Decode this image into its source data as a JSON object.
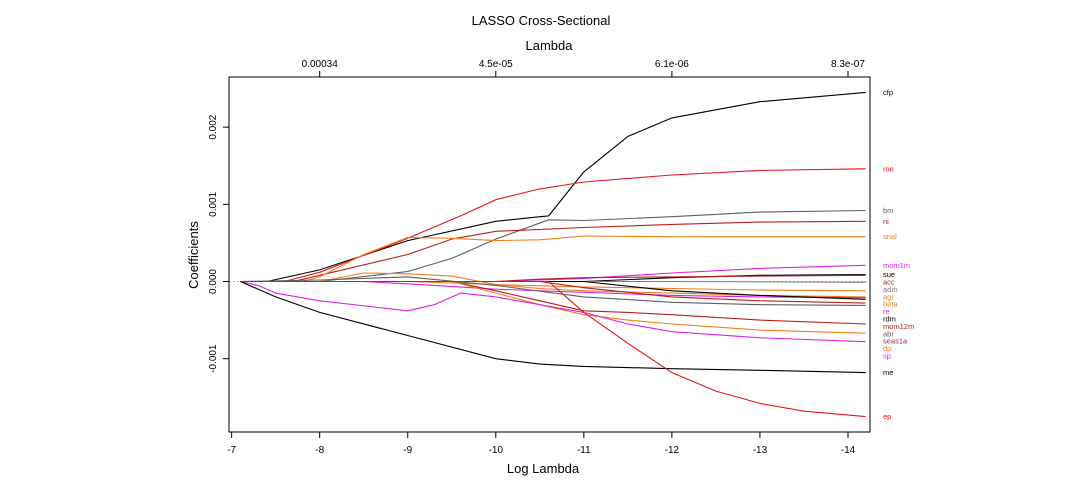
{
  "chart_data": {
    "type": "line",
    "title": "LASSO Cross-Sectional",
    "xlabel": "Log Lambda",
    "ylabel": "Coefficients",
    "top_axis_label": "Lambda",
    "xlim": [
      -6.97,
      -14.25
    ],
    "ylim": [
      -0.00195,
      0.00265
    ],
    "x_ticks": [
      -7,
      -8,
      -9,
      -10,
      -11,
      -12,
      -13,
      -14
    ],
    "x_tick_labels": [
      "-7",
      "-8",
      "-9",
      "-10",
      "-11",
      "-12",
      "-13",
      "-14"
    ],
    "y_ticks": [
      -0.001,
      0.0,
      0.001,
      0.002
    ],
    "y_tick_labels": [
      "-0.001",
      "0.000",
      "0.001",
      "0.002"
    ],
    "top_ticks": [
      -8,
      -10,
      -12,
      -14
    ],
    "top_tick_labels": [
      "0.00034",
      "4.5e-05",
      "6.1e-06",
      "8.3e-07"
    ],
    "zero_line": true,
    "legend_position": "right",
    "series": [
      {
        "name": "cfp",
        "color": "#000000",
        "points": [
          [
            -7.1,
            0
          ],
          [
            -7.4,
            0
          ],
          [
            -8,
            0.00015
          ],
          [
            -9,
            0.00053
          ],
          [
            -10,
            0.00078
          ],
          [
            -10.5,
            0.00084
          ],
          [
            -10.6,
            0.00085
          ],
          [
            -11,
            0.00142
          ],
          [
            -11.5,
            0.00188
          ],
          [
            -12,
            0.00212
          ],
          [
            -13,
            0.00233
          ],
          [
            -14.2,
            0.00245
          ]
        ]
      },
      {
        "name": "roe",
        "color": "#e8141e",
        "points": [
          [
            -7.1,
            0
          ],
          [
            -7.6,
            0
          ],
          [
            -8,
            0.00012
          ],
          [
            -9,
            0.00056
          ],
          [
            -9.6,
            0.00085
          ],
          [
            -10,
            0.00106
          ],
          [
            -10.5,
            0.0012
          ],
          [
            -11,
            0.00129
          ],
          [
            -12,
            0.00138
          ],
          [
            -13,
            0.00144
          ],
          [
            -14.2,
            0.00146
          ]
        ]
      },
      {
        "name": "bm",
        "color": "#606060",
        "points": [
          [
            -7.1,
            0
          ],
          [
            -8,
            0
          ],
          [
            -9,
            0.00013
          ],
          [
            -9.5,
            0.0003
          ],
          [
            -10,
            0.00055
          ],
          [
            -10.6,
            0.0008
          ],
          [
            -11,
            0.00079
          ],
          [
            -12,
            0.00084
          ],
          [
            -13,
            0.0009
          ],
          [
            -14.2,
            0.00092
          ]
        ]
      },
      {
        "name": "ni",
        "color": "#b22222",
        "points": [
          [
            -7.1,
            0
          ],
          [
            -7.7,
            0
          ],
          [
            -8,
            8e-05
          ],
          [
            -9,
            0.00035
          ],
          [
            -9.5,
            0.00055
          ],
          [
            -10,
            0.00065
          ],
          [
            -11,
            0.0007
          ],
          [
            -12,
            0.00074
          ],
          [
            -13,
            0.00077
          ],
          [
            -14.2,
            0.00078
          ]
        ]
      },
      {
        "name": "snal",
        "color": "#ef7f1a",
        "points": [
          [
            -7.1,
            0
          ],
          [
            -7.8,
            0
          ],
          [
            -8,
            6e-05
          ],
          [
            -8.5,
            0.00035
          ],
          [
            -9,
            0.00057
          ],
          [
            -9.5,
            0.00056
          ],
          [
            -10,
            0.00053
          ],
          [
            -10.5,
            0.00054
          ],
          [
            -11,
            0.00059
          ],
          [
            -12,
            0.00058
          ],
          [
            -13,
            0.00058
          ],
          [
            -14.2,
            0.00058
          ]
        ]
      },
      {
        "name": "mom1m",
        "color": "#e020e0",
        "points": [
          [
            -7.1,
            0
          ],
          [
            -10,
            0
          ],
          [
            -11,
            4e-05
          ],
          [
            -12,
            0.00011
          ],
          [
            -13,
            0.00017
          ],
          [
            -14.2,
            0.00021
          ]
        ]
      },
      {
        "name": "sue",
        "color": "#000000",
        "points": [
          [
            -7.1,
            0
          ],
          [
            -11,
            0
          ],
          [
            -12,
            5e-05
          ],
          [
            -13,
            8e-05
          ],
          [
            -14.2,
            9e-05
          ]
        ]
      },
      {
        "name": "acc",
        "color": "#b22222",
        "points": [
          [
            -7.1,
            0
          ],
          [
            -10,
            0
          ],
          [
            -10.5,
            3e-05
          ],
          [
            -11,
            5e-05
          ],
          [
            -12,
            6e-05
          ],
          [
            -13,
            7e-05
          ],
          [
            -14.2,
            8e-05
          ]
        ]
      },
      {
        "name": "adm",
        "color": "#808080",
        "points": [
          [
            -7.1,
            0
          ],
          [
            -12,
            0
          ],
          [
            -14.2,
            -1e-05
          ]
        ]
      },
      {
        "name": "agr",
        "color": "#ef7f1a",
        "points": [
          [
            -7.1,
            0
          ],
          [
            -9,
            0
          ],
          [
            -10,
            -4e-05
          ],
          [
            -11,
            -7e-05
          ],
          [
            -12,
            -9e-05
          ],
          [
            -13,
            -0.00011
          ],
          [
            -14.2,
            -0.00012
          ]
        ]
      },
      {
        "name": "beta",
        "color": "#ef7f1a",
        "points": [
          [
            -7.1,
            0
          ],
          [
            -8,
            0
          ],
          [
            -8.5,
            0.00011
          ],
          [
            -9,
            0.0001
          ],
          [
            -9.5,
            7e-05
          ],
          [
            -10,
            -4e-05
          ],
          [
            -10.5,
            -9e-05
          ],
          [
            -11,
            -0.00012
          ],
          [
            -12,
            -0.00015
          ],
          [
            -13,
            -0.00018
          ],
          [
            -14.2,
            -0.0002
          ]
        ]
      },
      {
        "name": "re",
        "color": "#e020e0",
        "points": [
          [
            -7.1,
            0
          ],
          [
            -8.5,
            0
          ],
          [
            -9,
            -3e-05
          ],
          [
            -10,
            -0.0001
          ],
          [
            -11,
            -0.00014
          ],
          [
            -12,
            -0.00018
          ],
          [
            -13,
            -0.0002
          ],
          [
            -14.2,
            -0.00021
          ]
        ]
      },
      {
        "name": "rdm",
        "color": "#000000",
        "points": [
          [
            -7.1,
            0
          ],
          [
            -11,
            0
          ],
          [
            -12,
            -0.00012
          ],
          [
            -13,
            -0.00018
          ],
          [
            -14.2,
            -0.00023
          ]
        ]
      },
      {
        "name": "mom12m",
        "color": "#b22222",
        "points": [
          [
            -7.1,
            0
          ],
          [
            -10.5,
            0
          ],
          [
            -11,
            -8e-05
          ],
          [
            -12,
            -0.0002
          ],
          [
            -13,
            -0.00025
          ],
          [
            -14.2,
            -0.00028
          ]
        ]
      },
      {
        "name": "abr",
        "color": "#606060",
        "points": [
          [
            -7.1,
            0
          ],
          [
            -8,
            2e-05
          ],
          [
            -9,
            6e-05
          ],
          [
            -10,
            -5e-05
          ],
          [
            -11,
            -0.0002
          ],
          [
            -12,
            -0.00027
          ],
          [
            -13,
            -0.0003
          ],
          [
            -14.2,
            -0.00031
          ]
        ]
      },
      {
        "name": "seas1a",
        "color": "#b22222",
        "points": [
          [
            -7.1,
            0
          ],
          [
            -9.5,
            0
          ],
          [
            -10,
            -0.00012
          ],
          [
            -10.5,
            -0.00025
          ],
          [
            -11,
            -0.00038
          ],
          [
            -11.5,
            -0.0004
          ],
          [
            -12,
            -0.00043
          ],
          [
            -13,
            -0.0005
          ],
          [
            -14.2,
            -0.00055
          ]
        ]
      },
      {
        "name": "dp",
        "color": "#ef7f1a",
        "points": [
          [
            -7.1,
            0
          ],
          [
            -9.5,
            0
          ],
          [
            -10,
            -0.00015
          ],
          [
            -10.5,
            -0.0003
          ],
          [
            -11,
            -0.00043
          ],
          [
            -11.5,
            -0.0005
          ],
          [
            -12,
            -0.00055
          ],
          [
            -13,
            -0.00063
          ],
          [
            -14.2,
            -0.00067
          ]
        ]
      },
      {
        "name": "sp",
        "color": "#e020e0",
        "points": [
          [
            -7.1,
            0
          ],
          [
            -7.3,
            -5e-05
          ],
          [
            -7.5,
            -0.00015
          ],
          [
            -8,
            -0.00025
          ],
          [
            -9,
            -0.00038
          ],
          [
            -9.3,
            -0.0003
          ],
          [
            -9.6,
            -0.00015
          ],
          [
            -10,
            -0.0002
          ],
          [
            -11,
            -0.0004
          ],
          [
            -11.5,
            -0.00055
          ],
          [
            -12,
            -0.00065
          ],
          [
            -13,
            -0.00073
          ],
          [
            -14.2,
            -0.00078
          ]
        ]
      },
      {
        "name": "me",
        "color": "#000000",
        "points": [
          [
            -7.1,
            0
          ],
          [
            -7.5,
            -0.0002
          ],
          [
            -8,
            -0.0004
          ],
          [
            -9,
            -0.0007
          ],
          [
            -10,
            -0.001
          ],
          [
            -10.5,
            -0.00107
          ],
          [
            -11,
            -0.0011
          ],
          [
            -12,
            -0.00113
          ],
          [
            -13,
            -0.00115
          ],
          [
            -14.2,
            -0.00118
          ]
        ]
      },
      {
        "name": "ep",
        "color": "#e8141e",
        "points": [
          [
            -7.1,
            0
          ],
          [
            -10.6,
            0
          ],
          [
            -11,
            -0.0004
          ],
          [
            -11.5,
            -0.0008
          ],
          [
            -12,
            -0.00118
          ],
          [
            -12.5,
            -0.00142
          ],
          [
            -13,
            -0.00158
          ],
          [
            -13.5,
            -0.00168
          ],
          [
            -14.2,
            -0.00175
          ]
        ]
      }
    ],
    "legend_labels": [
      "cfp",
      "roe",
      "bm",
      "ni",
      "snal",
      "mom1m",
      "sue",
      "acc",
      "adm",
      "agr",
      "beta",
      "re",
      "rdm",
      "mom12m",
      "abr",
      "seas1a",
      "dp",
      "sp",
      "me",
      "ep"
    ],
    "legend_colors": [
      "#000000",
      "#e8141e",
      "#606060",
      "#b22222",
      "#ef7f1a",
      "#e020e0",
      "#000000",
      "#b22222",
      "#808080",
      "#ef7f1a",
      "#ef7f1a",
      "#e020e0",
      "#000000",
      "#b22222",
      "#606060",
      "#b22222",
      "#ef7f1a",
      "#e020e0",
      "#000000",
      "#e8141e"
    ]
  }
}
